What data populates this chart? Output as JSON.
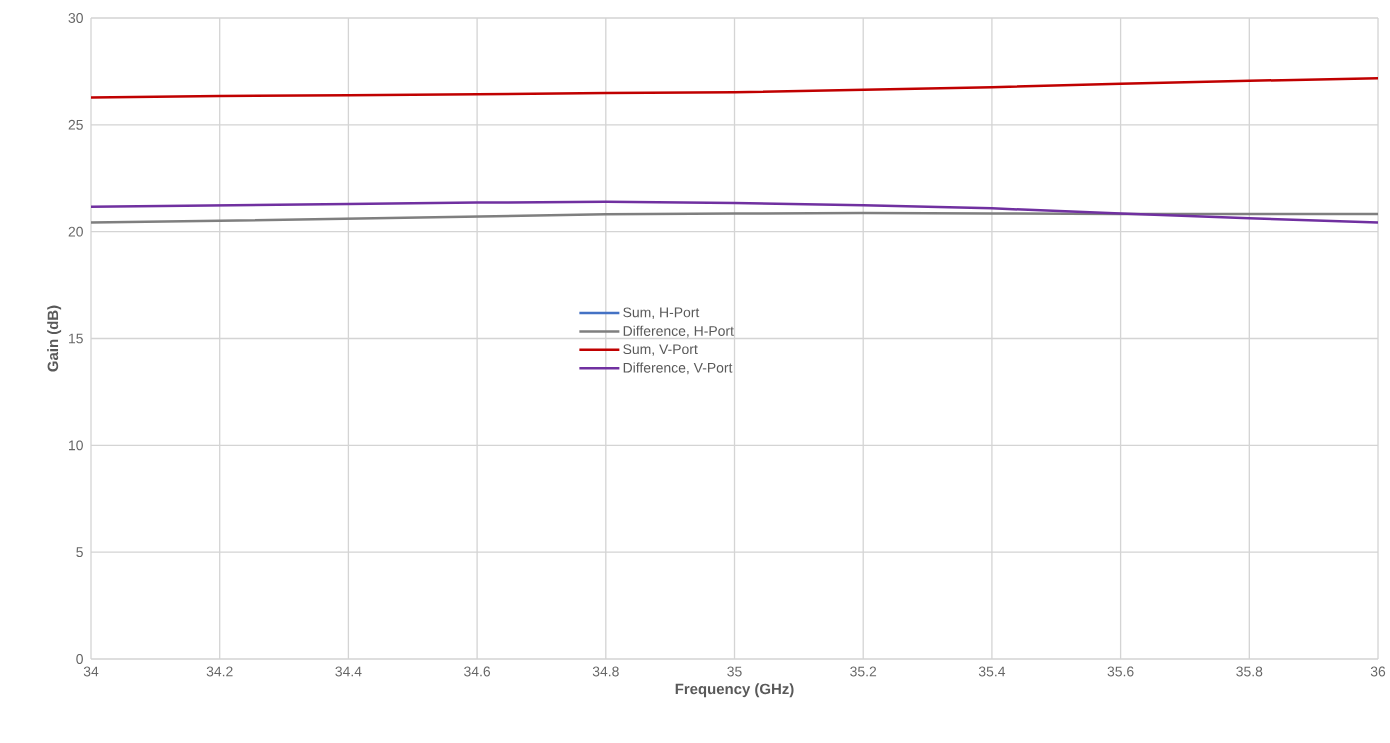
{
  "chart_data": {
    "type": "line",
    "xlabel": "Frequency (GHz)",
    "ylabel": "Gain (dB)",
    "x": [
      34,
      34.2,
      34.4,
      34.6,
      34.8,
      35,
      35.2,
      35.4,
      35.6,
      35.8,
      36
    ],
    "series": [
      {
        "name": "Sum, H-Port",
        "color": "#4472c4",
        "values": [
          null,
          null,
          null,
          null,
          null,
          null,
          null,
          null,
          null,
          null,
          null
        ]
      },
      {
        "name": "Difference, H-Port",
        "color": "#7f7f7f",
        "values": [
          20.43,
          20.51,
          20.61,
          20.71,
          20.81,
          20.85,
          20.87,
          20.85,
          20.83,
          20.83,
          20.83
        ]
      },
      {
        "name": "Sum, V-Port",
        "color": "#c00000",
        "values": [
          26.28,
          26.35,
          26.38,
          26.43,
          26.49,
          26.52,
          26.64,
          26.76,
          26.92,
          27.06,
          27.18
        ]
      },
      {
        "name": "Difference, V-Port",
        "color": "#7030a0",
        "values": [
          21.16,
          21.23,
          21.3,
          21.36,
          21.4,
          21.34,
          21.23,
          21.09,
          20.85,
          20.63,
          20.43
        ]
      }
    ],
    "xlim": [
      34,
      36
    ],
    "ylim": [
      0,
      30
    ],
    "xticks": [
      34,
      34.2,
      34.4,
      34.6,
      34.8,
      35,
      35.2,
      35.4,
      35.6,
      35.8,
      36
    ],
    "yticks": [
      0,
      5,
      10,
      15,
      20,
      25,
      30
    ],
    "grid": true,
    "legend": "center",
    "marker": "none",
    "line_style": "solid"
  }
}
